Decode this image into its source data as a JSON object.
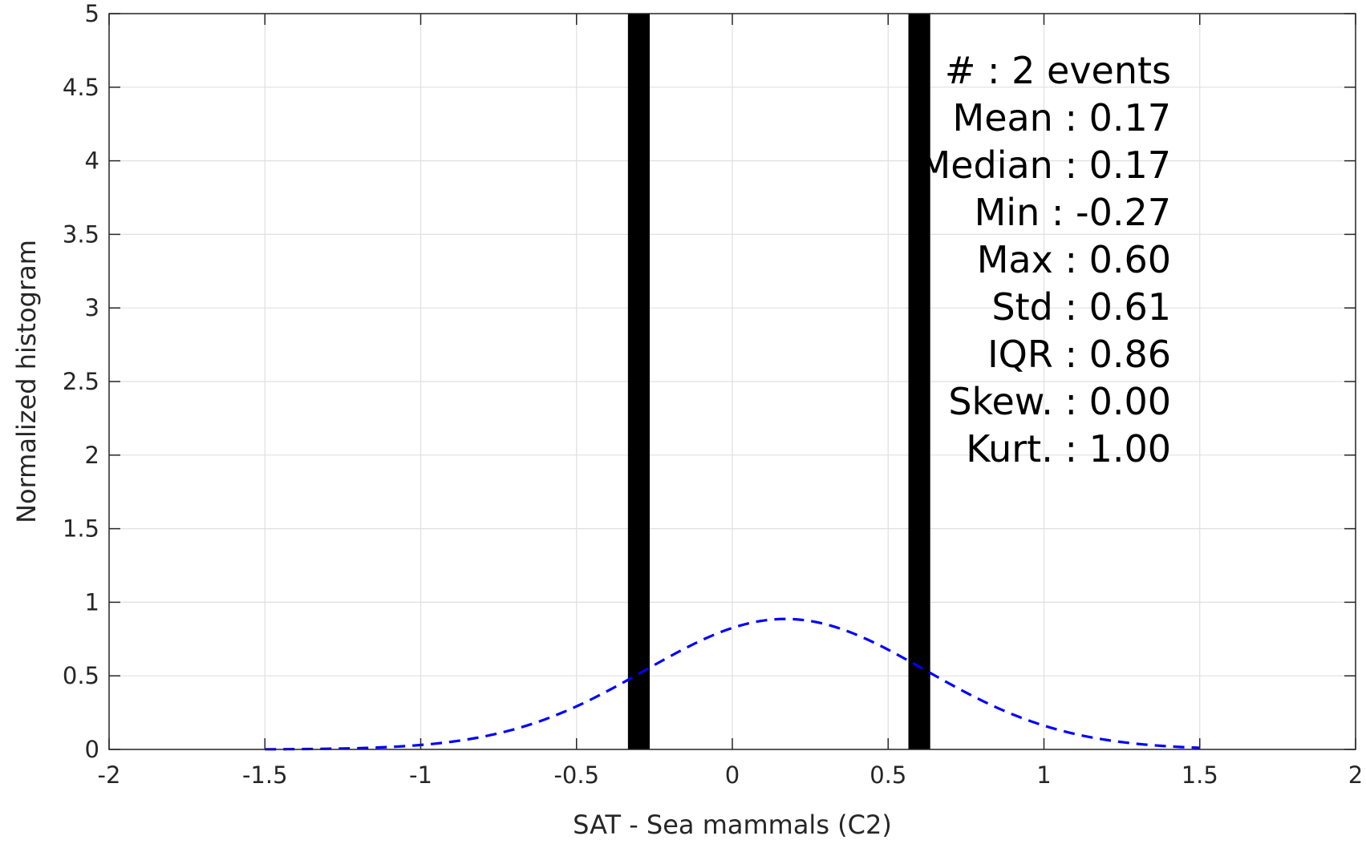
{
  "chart_data": {
    "type": "bar",
    "xlabel": "SAT - Sea mammals  (C2)",
    "ylabel": "Normalized histogram",
    "xlim": [
      -2,
      2
    ],
    "ylim": [
      0,
      5
    ],
    "xticks": [
      "-2",
      "-1.5",
      "-1",
      "-0.5",
      "0",
      "0.5",
      "1",
      "1.5",
      "2"
    ],
    "yticks": [
      "0",
      "0.5",
      "1",
      "1.5",
      "2",
      "2.5",
      "3",
      "3.5",
      "4",
      "4.5",
      "5"
    ],
    "grid": true,
    "bars": [
      {
        "center": -0.3,
        "width": 0.07,
        "value": 5
      },
      {
        "center": 0.6,
        "width": 0.07,
        "value": 5
      }
    ],
    "fit_curve": {
      "style": "dashed",
      "color": "#0000ff",
      "x_range": [
        -1.5,
        1.5
      ],
      "mean": 0.17,
      "std": 0.45
    },
    "stats_box": [
      "#  : 2 events",
      "Mean : 0.17",
      "Median : 0.17",
      "Min : -0.27",
      "Max : 0.60",
      "Std : 0.61",
      "IQR : 0.86",
      "Skew. : 0.00",
      "Kurt. : 1.00"
    ]
  },
  "colors": {
    "bar": "#000000",
    "grid": "#e0e0e0",
    "axis": "#262626",
    "fit": "#0000ff"
  }
}
